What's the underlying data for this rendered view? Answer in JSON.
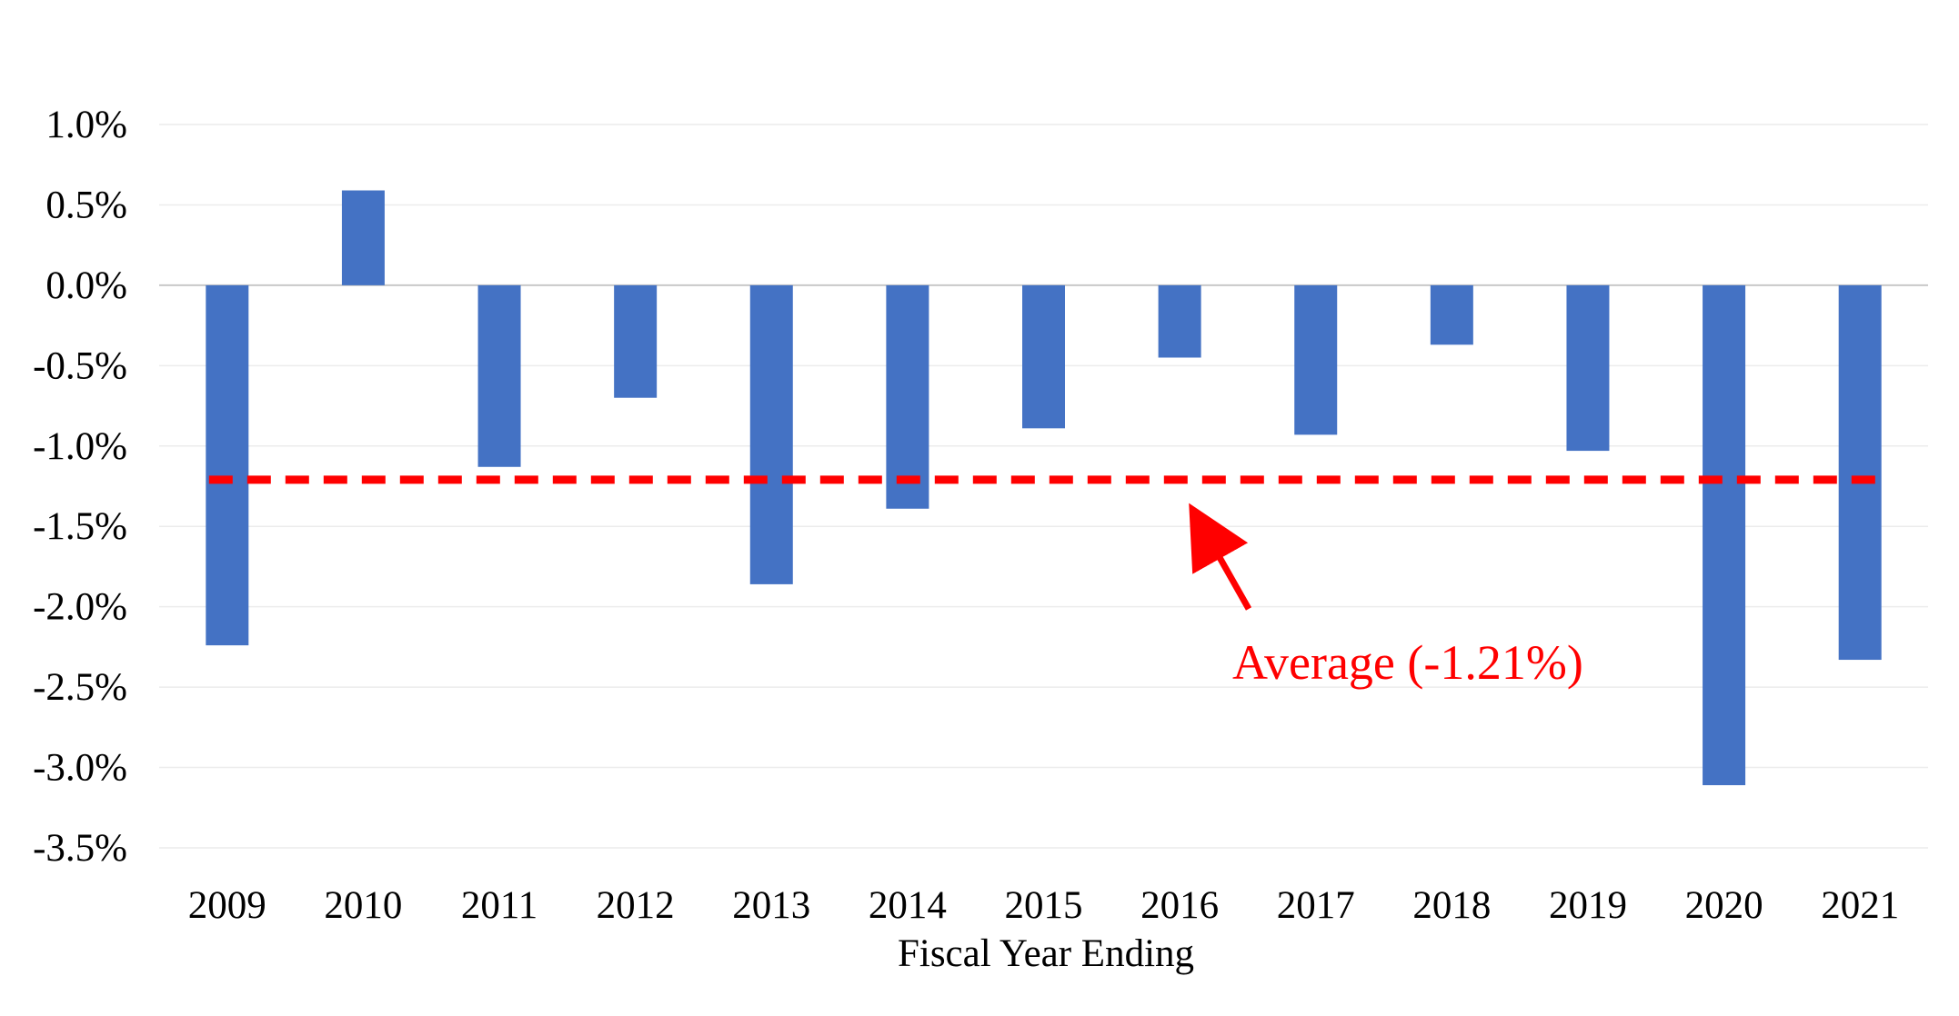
{
  "chart_data": {
    "type": "bar",
    "categories": [
      "2009",
      "2010",
      "2011",
      "2012",
      "2013",
      "2014",
      "2015",
      "2016",
      "2017",
      "2018",
      "2019",
      "2020",
      "2021"
    ],
    "series": [
      {
        "values": [
          -2.24,
          0.59,
          -1.13,
          -0.7,
          -1.86,
          -1.39,
          -0.89,
          -0.45,
          -0.93,
          -0.37,
          -1.03,
          -3.11,
          -2.33
        ]
      }
    ],
    "title": "",
    "xlabel": "Fiscal Year Ending",
    "ylabel": "",
    "ylim": [
      -3.5,
      1.0
    ],
    "yticks": [
      1.0,
      0.5,
      0.0,
      -0.5,
      -1.0,
      -1.5,
      -2.0,
      -2.5,
      -3.0,
      -3.5
    ],
    "ytick_labels": [
      "1.0%",
      "0.5%",
      "0.0%",
      "-0.5%",
      "-1.0%",
      "-1.5%",
      "-2.0%",
      "-2.5%",
      "-3.0%",
      "-3.5%"
    ],
    "grid": true,
    "legend": "none",
    "average": {
      "value": -1.21,
      "label": "Average (-1.21%)",
      "style": "dashed",
      "color": "#ff0000"
    },
    "bar_color": "#4472c4"
  }
}
